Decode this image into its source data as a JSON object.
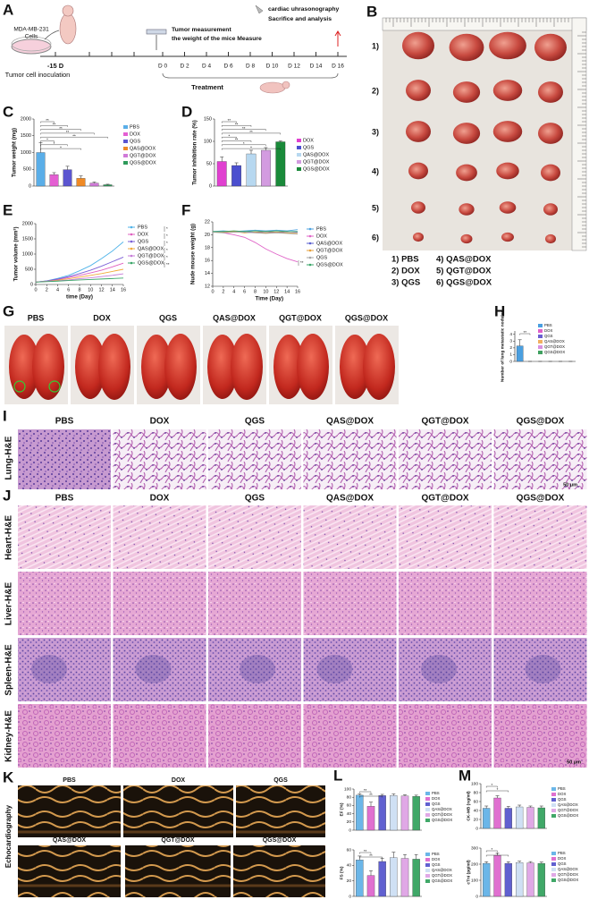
{
  "panel_letters": [
    "A",
    "B",
    "C",
    "D",
    "E",
    "F",
    "G",
    "H",
    "I",
    "J",
    "K",
    "L",
    "M"
  ],
  "timeline": {
    "cell_line": "MDA-MB-231",
    "cells": "Cells",
    "inoculation": "Tumor cell inoculation",
    "start": "-15 D",
    "measure_1": "Tumor measurement",
    "measure_2": "the weight of the mice Measure",
    "end_1": "cardiac uhrasonography",
    "end_2": "Sacrifice and analysis",
    "days": [
      "D 0",
      "D 2",
      "D 4",
      "D 6",
      "D 8",
      "D 10",
      "D 12",
      "D 14",
      "D 16"
    ],
    "treatment": "Treatment"
  },
  "tumor_photos": {
    "rows": [
      "1)",
      "2)",
      "3)",
      "4)",
      "5)",
      "6)"
    ],
    "legend": [
      "1) PBS",
      "2) DOX",
      "3) QGS",
      "4) QAS@DOX",
      "5) QGT@DOX",
      "6) QGS@DOX"
    ]
  },
  "lung_photos": {
    "labels": [
      "PBS",
      "DOX",
      "QGS",
      "QAS@DOX",
      "QGT@DOX",
      "QGS@DOX"
    ]
  },
  "lung_he": {
    "row_label": "Lung-H&E",
    "labels": [
      "PBS",
      "DOX",
      "QGS",
      "QAS@DOX",
      "QGT@DOX",
      "QGS@DOX"
    ],
    "scale": "50 μm"
  },
  "organ_he": {
    "labels": [
      "PBS",
      "DOX",
      "QGS",
      "QAS@DOX",
      "QGT@DOX",
      "QGS@DOX"
    ],
    "rows": [
      "Heart-H&E",
      "Liver-H&E",
      "Spleen-H&E",
      "Kidney-H&E"
    ],
    "scale": "50 μm"
  },
  "echo": {
    "side_label": "Echocardiography",
    "labels": [
      "PBS",
      "DOX",
      "QGS",
      "QAS@DOX",
      "QGT@DOX",
      "QGS@DOX"
    ]
  },
  "chart_data": [
    {
      "type": "bar",
      "ylabel": "Tumor weight (mg)",
      "categories": [
        "PBS",
        "DOX",
        "QGS",
        "QAS@DOX",
        "QGT@DOX",
        "QGS@DOX"
      ],
      "values": [
        1000,
        340,
        490,
        230,
        90,
        40
      ],
      "errors": [
        300,
        60,
        100,
        70,
        30,
        15
      ],
      "colors": [
        "#5aaee8",
        "#e45fd3",
        "#5b55d0",
        "#f08a24",
        "#d07ad8",
        "#2e9a5a"
      ],
      "ylim": [
        0,
        2000
      ],
      "yticks": [
        0,
        500,
        1000,
        1500,
        2000
      ],
      "significance": [
        "**",
        "**",
        "**",
        "**",
        "**",
        "*",
        "*",
        "*"
      ]
    },
    {
      "type": "bar",
      "ylabel": "Tumor inhibition rate (%)",
      "categories": [
        "DOX",
        "QGS",
        "QAS@DOX",
        "QGT@DOX",
        "QGS@DOX"
      ],
      "values": [
        55,
        46,
        72,
        80,
        99
      ],
      "errors": [
        10,
        6,
        8,
        6,
        2
      ],
      "colors": [
        "#e040d0",
        "#4b4fcf",
        "#b7d8f0",
        "#d39be0",
        "#1a8a3a"
      ],
      "ylim": [
        0,
        150
      ],
      "yticks": [
        0,
        50,
        100,
        150
      ],
      "significance": [
        "**",
        "**",
        "**",
        "**",
        "*",
        "**",
        "*",
        "*"
      ]
    },
    {
      "type": "line",
      "ylabel": "Tumor volume (mm³)",
      "xlabel": "time (Day)",
      "x": [
        0,
        2,
        4,
        6,
        8,
        10,
        12,
        14,
        16
      ],
      "xlim": [
        0,
        16
      ],
      "xticks": [
        0,
        2,
        4,
        6,
        8,
        10,
        12,
        14,
        16
      ],
      "ylim": [
        0,
        2000
      ],
      "yticks": [
        0,
        500,
        1000,
        1500,
        2000
      ],
      "series": [
        {
          "name": "PBS",
          "color": "#4fb3e8",
          "values": [
            80,
            120,
            200,
            300,
            450,
            620,
            850,
            1100,
            1400
          ]
        },
        {
          "name": "DOX",
          "color": "#e060c0",
          "values": [
            80,
            110,
            160,
            230,
            300,
            380,
            470,
            580,
            700
          ]
        },
        {
          "name": "QGS",
          "color": "#7b5fd6",
          "values": [
            80,
            115,
            180,
            260,
            360,
            470,
            600,
            750,
            900
          ]
        },
        {
          "name": "QAS@DOX",
          "color": "#f2a93b",
          "values": [
            80,
            105,
            140,
            190,
            240,
            300,
            360,
            430,
            500
          ]
        },
        {
          "name": "QGT@DOX",
          "color": "#c77dd8",
          "values": [
            80,
            100,
            120,
            150,
            190,
            220,
            260,
            300,
            350
          ]
        },
        {
          "name": "QGS@DOX",
          "color": "#3aa668",
          "values": [
            80,
            95,
            110,
            130,
            150,
            165,
            180,
            195,
            210
          ]
        }
      ],
      "significance": [
        "*",
        "*",
        "*",
        "*",
        "*",
        "**"
      ]
    },
    {
      "type": "line",
      "ylabel": "Nude mouse weight (g)",
      "xlabel": "Time (Day)",
      "x": [
        0,
        2,
        4,
        6,
        8,
        10,
        12,
        14,
        16
      ],
      "xlim": [
        0,
        16
      ],
      "xticks": [
        0,
        2,
        4,
        6,
        8,
        10,
        12,
        14,
        16
      ],
      "ylim": [
        12,
        22
      ],
      "yticks": [
        12,
        14,
        16,
        18,
        20,
        22
      ],
      "series": [
        {
          "name": "PBS",
          "color": "#4fa3e0",
          "values": [
            20.5,
            20.6,
            20.5,
            20.6,
            20.7,
            20.6,
            20.7,
            20.6,
            20.8
          ]
        },
        {
          "name": "DOX",
          "color": "#e065c8",
          "values": [
            20.5,
            20.3,
            20.0,
            19.6,
            18.8,
            17.8,
            17.0,
            16.3,
            15.8
          ]
        },
        {
          "name": "QAS@DOX",
          "color": "#5a5fcf",
          "values": [
            20.4,
            20.5,
            20.4,
            20.5,
            20.4,
            20.5,
            20.4,
            20.5,
            20.4
          ]
        },
        {
          "name": "QGT@DOX",
          "color": "#e6a03c",
          "values": [
            20.5,
            20.4,
            20.5,
            20.3,
            20.4,
            20.3,
            20.4,
            20.3,
            20.2
          ]
        },
        {
          "name": "QGS",
          "color": "#a6a6a6",
          "values": [
            20.4,
            20.3,
            20.4,
            20.4,
            20.3,
            20.2,
            20.3,
            20.2,
            20.1
          ]
        },
        {
          "name": "QGS@DOX",
          "color": "#3aa668",
          "values": [
            20.5,
            20.5,
            20.6,
            20.5,
            20.6,
            20.5,
            20.6,
            20.5,
            20.5
          ]
        }
      ],
      "significance": [
        "**"
      ]
    },
    {
      "type": "bar",
      "ylabel": "Number of lung metastatic nodules",
      "categories": [
        "PBS",
        "DOX",
        "QGS",
        "QAS@DOX",
        "QGT@DOX",
        "QGS@DOX"
      ],
      "values": [
        2.3,
        0,
        0,
        0,
        0,
        0
      ],
      "errors": [
        0.9,
        0,
        0,
        0,
        0,
        0
      ],
      "colors": [
        "#4a9fe0",
        "#e060c8",
        "#6b5fd0",
        "#f2b060",
        "#d890e0",
        "#40a060"
      ],
      "ylim": [
        0,
        4.5
      ],
      "yticks": [
        0,
        1,
        2,
        3,
        4
      ],
      "significance": [
        "**"
      ]
    },
    {
      "type": "bar",
      "ylabel": "EF (%)",
      "categories": [
        "PBS",
        "DOX",
        "QGS",
        "QAS@DOX",
        "QGT@DOX",
        "QGS@DOX"
      ],
      "values": [
        85,
        58,
        84,
        84,
        83,
        82
      ],
      "errors": [
        3,
        10,
        3,
        4,
        3,
        3
      ],
      "colors": [
        "#6bb6e8",
        "#e070d0",
        "#6060d0",
        "#cfe0f4",
        "#e0a8e6",
        "#40a868"
      ],
      "ylim": [
        0,
        100
      ],
      "yticks": [
        0,
        20,
        40,
        60,
        80,
        100
      ],
      "significance": [
        "**",
        "**"
      ]
    },
    {
      "type": "bar",
      "ylabel": "FS (%)",
      "categories": [
        "PBS",
        "DOX",
        "QGS",
        "QAS@DOX",
        "QGT@DOX",
        "QGS@DOX"
      ],
      "values": [
        47,
        27,
        45,
        50,
        49,
        48
      ],
      "errors": [
        5,
        6,
        4,
        7,
        5,
        6
      ],
      "colors": [
        "#6bb6e8",
        "#e070d0",
        "#6060d0",
        "#cfe0f4",
        "#e0a8e6",
        "#40a868"
      ],
      "ylim": [
        0,
        60
      ],
      "yticks": [
        0,
        20,
        40,
        60
      ],
      "significance": [
        "**",
        "**"
      ]
    },
    {
      "type": "bar",
      "ylabel": "CK-MB (ng/ml)",
      "categories": [
        "PBS",
        "DOX",
        "QGS",
        "QAS@DOX",
        "QGT@DOX",
        "QGS@DOX"
      ],
      "values": [
        45,
        68,
        45,
        48,
        47,
        46
      ],
      "errors": [
        5,
        5,
        4,
        4,
        3,
        4
      ],
      "colors": [
        "#6bb6e8",
        "#e070d0",
        "#6060d0",
        "#cfe0f4",
        "#e0a8e6",
        "#40a868"
      ],
      "ylim": [
        0,
        100
      ],
      "yticks": [
        0,
        20,
        40,
        60,
        80,
        100
      ],
      "significance": [
        "*",
        "*"
      ]
    },
    {
      "type": "bar",
      "ylabel": "cTnI (pg/ml)",
      "categories": [
        "PBS",
        "DOX",
        "QGS",
        "QAS@DOX",
        "QGT@DOX",
        "QGS@DOX"
      ],
      "values": [
        205,
        255,
        205,
        210,
        208,
        205
      ],
      "errors": [
        10,
        12,
        10,
        8,
        8,
        8
      ],
      "colors": [
        "#6bb6e8",
        "#e070d0",
        "#6060d0",
        "#cfe0f4",
        "#e0a8e6",
        "#40a868"
      ],
      "ylim": [
        0,
        300
      ],
      "yticks": [
        0,
        100,
        200,
        300
      ],
      "significance": [
        "*",
        "*"
      ]
    }
  ]
}
